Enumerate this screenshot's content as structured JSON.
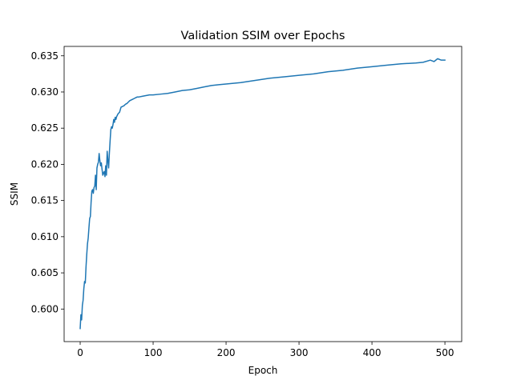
{
  "chart_data": {
    "type": "line",
    "title": "Validation SSIM over Epochs",
    "xlabel": "Epoch",
    "ylabel": "SSIM",
    "xlim": [
      -22,
      523
    ],
    "ylim": [
      0.5955,
      0.6363
    ],
    "xticks": [
      0,
      100,
      200,
      300,
      400,
      500
    ],
    "xtick_labels": [
      "0",
      "100",
      "200",
      "300",
      "400",
      "500"
    ],
    "yticks": [
      0.6,
      0.605,
      0.61,
      0.615,
      0.62,
      0.625,
      0.63,
      0.635
    ],
    "ytick_labels": [
      "0.600",
      "0.605",
      "0.610",
      "0.615",
      "0.620",
      "0.625",
      "0.630",
      "0.635"
    ],
    "grid": false,
    "legend": "none",
    "series": [
      {
        "color": "#1f77b4",
        "x": [
          0,
          1,
          2,
          3,
          4,
          5,
          6,
          7,
          8,
          9,
          10,
          11,
          12,
          13,
          14,
          15,
          16,
          17,
          18,
          19,
          20,
          21,
          22,
          23,
          24,
          25,
          26,
          27,
          28,
          29,
          30,
          31,
          32,
          33,
          34,
          35,
          36,
          37,
          38,
          39,
          40,
          41,
          42,
          43,
          44,
          45,
          46,
          47,
          48,
          49,
          50,
          52,
          54,
          56,
          58,
          60,
          62,
          64,
          66,
          68,
          70,
          72,
          74,
          76,
          78,
          80,
          85,
          90,
          95,
          100,
          110,
          120,
          130,
          140,
          150,
          160,
          170,
          180,
          190,
          200,
          220,
          240,
          260,
          280,
          300,
          320,
          340,
          360,
          380,
          400,
          420,
          440,
          460,
          470,
          480,
          485,
          490,
          495,
          500
        ],
        "y": [
          0.5973,
          0.5992,
          0.5985,
          0.6005,
          0.6012,
          0.6028,
          0.6038,
          0.6036,
          0.6058,
          0.6075,
          0.609,
          0.6098,
          0.6112,
          0.6125,
          0.6128,
          0.6148,
          0.6163,
          0.6165,
          0.616,
          0.6168,
          0.617,
          0.6185,
          0.6165,
          0.6195,
          0.62,
          0.6203,
          0.6215,
          0.6205,
          0.6198,
          0.6202,
          0.6193,
          0.6185,
          0.6188,
          0.619,
          0.6183,
          0.6198,
          0.6185,
          0.6218,
          0.6205,
          0.6195,
          0.6215,
          0.6232,
          0.6248,
          0.6252,
          0.625,
          0.6255,
          0.6262,
          0.6258,
          0.6265,
          0.6262,
          0.6266,
          0.627,
          0.6272,
          0.6279,
          0.628,
          0.6281,
          0.6283,
          0.6284,
          0.6286,
          0.6288,
          0.6289,
          0.629,
          0.6291,
          0.6292,
          0.6293,
          0.6293,
          0.6294,
          0.6295,
          0.6296,
          0.6296,
          0.6297,
          0.6298,
          0.63,
          0.6302,
          0.6303,
          0.6305,
          0.6307,
          0.6309,
          0.631,
          0.6311,
          0.6313,
          0.6316,
          0.6319,
          0.6321,
          0.6323,
          0.6325,
          0.6328,
          0.633,
          0.6333,
          0.6335,
          0.6337,
          0.6339,
          0.634,
          0.6341,
          0.6344,
          0.6342,
          0.6346,
          0.6344,
          0.6344
        ]
      }
    ]
  }
}
